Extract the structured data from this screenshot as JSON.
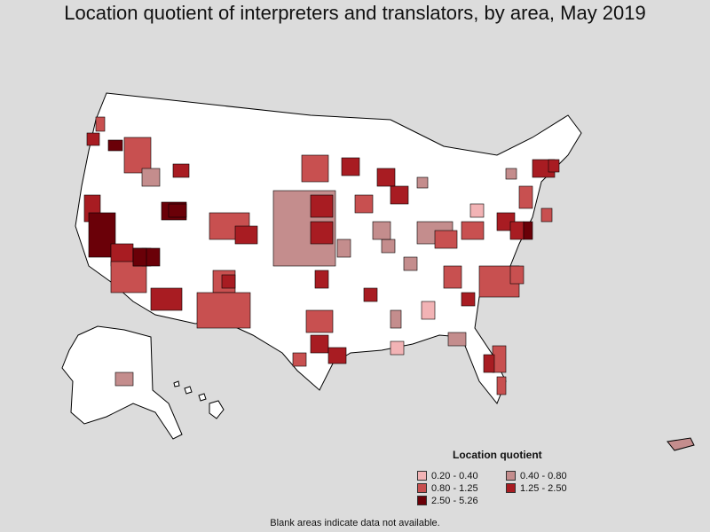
{
  "title": "Location quotient of interpreters and translators, by area, May 2019",
  "legend": {
    "title": "Location quotient",
    "items": [
      {
        "label": "0.20 - 0.40",
        "color": "#f2b3b5"
      },
      {
        "label": "0.40 - 0.80",
        "color": "#c48d8d"
      },
      {
        "label": "0.80 - 1.25",
        "color": "#c85050"
      },
      {
        "label": "1.25 - 2.50",
        "color": "#a81c22"
      },
      {
        "label": "2.50 - 5.26",
        "color": "#6a0008"
      }
    ]
  },
  "footnote": "Blank areas indicate data not available.",
  "colors": {
    "background": "#dcdcdc",
    "land": "#ffffff",
    "border": "#000000"
  }
}
